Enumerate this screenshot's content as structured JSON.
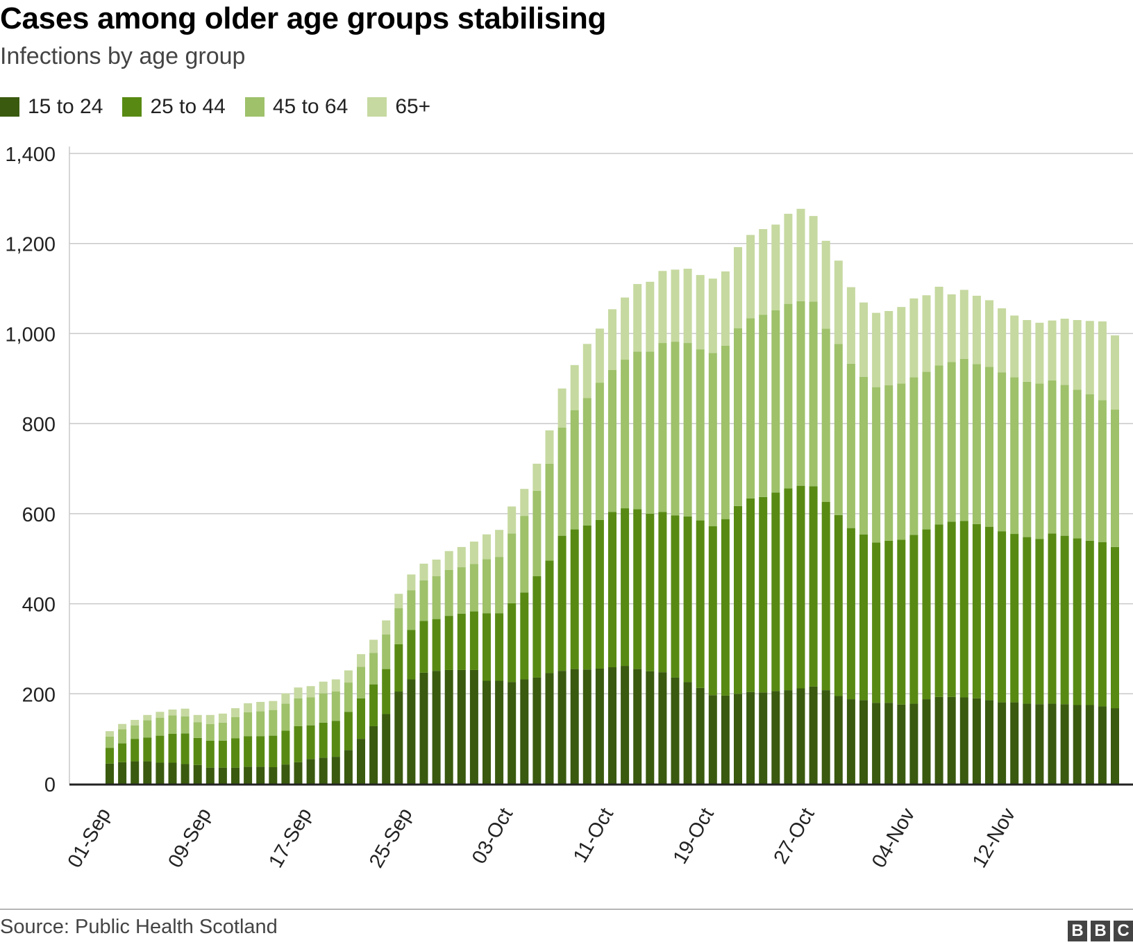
{
  "chart_data": {
    "type": "bar",
    "stacked": true,
    "title": "Cases among older age groups stabilising",
    "subtitle": "Infections by age group",
    "source": "Source: Public Health Scotland",
    "xlabel": "",
    "ylabel": "",
    "ylim": [
      0,
      1400
    ],
    "yticks": [
      0,
      200,
      400,
      600,
      800,
      1000,
      1200,
      1400
    ],
    "ytick_labels": [
      "0",
      "200",
      "400",
      "600",
      "800",
      "1,000",
      "1,200",
      "1,400"
    ],
    "grid": true,
    "legend_position": "top-left",
    "categories": [
      "01-Sep",
      "02-Sep",
      "03-Sep",
      "04-Sep",
      "05-Sep",
      "06-Sep",
      "07-Sep",
      "08-Sep",
      "09-Sep",
      "10-Sep",
      "11-Sep",
      "12-Sep",
      "13-Sep",
      "14-Sep",
      "15-Sep",
      "16-Sep",
      "17-Sep",
      "18-Sep",
      "19-Sep",
      "20-Sep",
      "21-Sep",
      "22-Sep",
      "23-Sep",
      "24-Sep",
      "25-Sep",
      "26-Sep",
      "27-Sep",
      "28-Sep",
      "29-Sep",
      "30-Sep",
      "01-Oct",
      "02-Oct",
      "03-Oct",
      "04-Oct",
      "05-Oct",
      "06-Oct",
      "07-Oct",
      "08-Oct",
      "09-Oct",
      "10-Oct",
      "11-Oct",
      "12-Oct",
      "13-Oct",
      "14-Oct",
      "15-Oct",
      "16-Oct",
      "17-Oct",
      "18-Oct",
      "19-Oct",
      "20-Oct",
      "21-Oct",
      "22-Oct",
      "23-Oct",
      "24-Oct",
      "25-Oct",
      "26-Oct",
      "27-Oct",
      "28-Oct",
      "29-Oct",
      "30-Oct",
      "31-Oct",
      "01-Nov",
      "02-Nov",
      "03-Nov",
      "04-Nov",
      "05-Nov",
      "06-Nov",
      "07-Nov",
      "08-Nov",
      "09-Nov",
      "10-Nov",
      "11-Nov",
      "12-Nov",
      "13-Nov",
      "14-Nov",
      "15-Nov",
      "16-Nov",
      "17-Nov",
      "18-Nov",
      "19-Nov",
      "20-Nov"
    ],
    "xtick_labels": [
      "01-Sep",
      "09-Sep",
      "17-Sep",
      "25-Sep",
      "03-Oct",
      "11-Oct",
      "19-Oct",
      "27-Oct",
      "04-Nov",
      "12-Nov"
    ],
    "series": [
      {
        "name": "15 to 24",
        "color": "#3a5a0f",
        "values": [
          45,
          48,
          50,
          50,
          47,
          47,
          44,
          42,
          36,
          36,
          36,
          38,
          38,
          37,
          43,
          48,
          55,
          58,
          60,
          75,
          100,
          128,
          155,
          205,
          232,
          247,
          251,
          253,
          253,
          253,
          229,
          229,
          226,
          232,
          236,
          246,
          251,
          255,
          254,
          256,
          259,
          262,
          255,
          250,
          248,
          236,
          226,
          213,
          197,
          196,
          200,
          204,
          203,
          206,
          208,
          212,
          216,
          208,
          195,
          188,
          186,
          180,
          180,
          176,
          178,
          188,
          193,
          193,
          192,
          190,
          186,
          181,
          181,
          178,
          177,
          178,
          177,
          175,
          175,
          172,
          168
        ]
      },
      {
        "name": "25 to 44",
        "color": "#588a13",
        "values": [
          35,
          42,
          50,
          53,
          60,
          64,
          68,
          60,
          60,
          60,
          65,
          68,
          68,
          70,
          75,
          80,
          75,
          78,
          80,
          85,
          90,
          93,
          100,
          105,
          110,
          115,
          115,
          120,
          125,
          130,
          150,
          150,
          175,
          193,
          225,
          250,
          300,
          310,
          320,
          330,
          345,
          350,
          355,
          350,
          356,
          360,
          368,
          372,
          375,
          392,
          417,
          430,
          434,
          441,
          448,
          450,
          445,
          418,
          402,
          380,
          368,
          356,
          360,
          366,
          375,
          377,
          383,
          389,
          392,
          387,
          385,
          380,
          374,
          370,
          367,
          378,
          374,
          370,
          365,
          365,
          358
        ]
      },
      {
        "name": "45 to 64",
        "color": "#9ec16a",
        "values": [
          25,
          31,
          30,
          38,
          40,
          41,
          38,
          35,
          37,
          40,
          47,
          53,
          55,
          57,
          60,
          62,
          62,
          65,
          65,
          65,
          70,
          70,
          77,
          80,
          88,
          90,
          95,
          102,
          103,
          105,
          120,
          125,
          155,
          170,
          190,
          215,
          240,
          265,
          283,
          305,
          315,
          330,
          350,
          360,
          375,
          386,
          385,
          380,
          385,
          385,
          395,
          400,
          405,
          405,
          410,
          410,
          410,
          385,
          380,
          365,
          350,
          345,
          345,
          347,
          350,
          350,
          353,
          355,
          360,
          355,
          355,
          353,
          348,
          345,
          345,
          340,
          335,
          330,
          325,
          315,
          305
        ]
      },
      {
        "name": "65+",
        "color": "#c6d9a0",
        "values": [
          12,
          12,
          12,
          12,
          13,
          13,
          17,
          16,
          20,
          20,
          20,
          20,
          21,
          20,
          23,
          24,
          25,
          26,
          27,
          27,
          28,
          29,
          31,
          32,
          35,
          37,
          37,
          42,
          45,
          50,
          55,
          60,
          60,
          60,
          60,
          74,
          87,
          100,
          120,
          120,
          135,
          138,
          150,
          155,
          160,
          160,
          165,
          165,
          165,
          165,
          180,
          185,
          190,
          190,
          200,
          205,
          190,
          195,
          185,
          170,
          165,
          165,
          165,
          170,
          175,
          170,
          175,
          150,
          153,
          152,
          148,
          142,
          137,
          137,
          135,
          133,
          147,
          155,
          163,
          175,
          165
        ]
      }
    ]
  }
}
